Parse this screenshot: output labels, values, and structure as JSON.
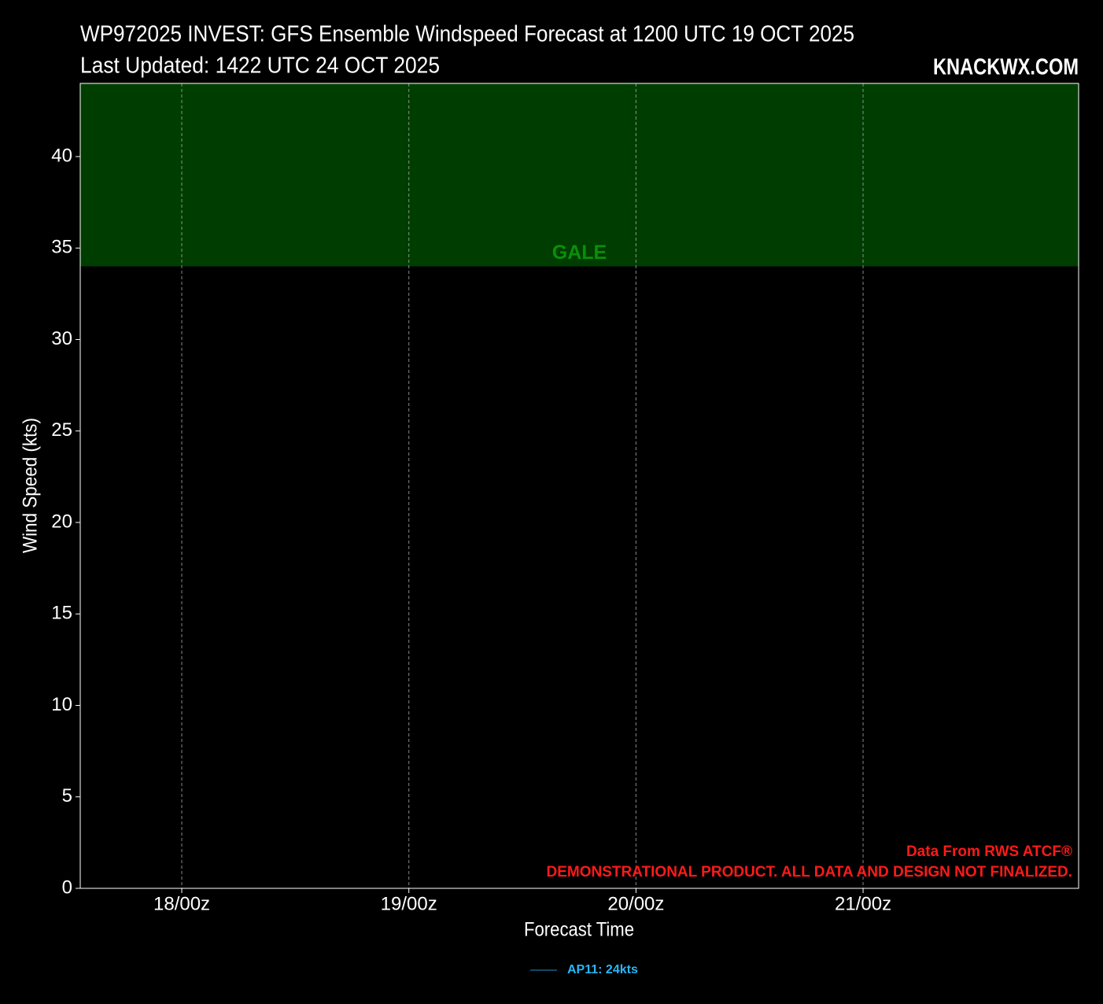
{
  "chart_data": {
    "type": "line",
    "title": "WP972025 INVEST: GFS Ensemble Windspeed Forecast at 1200 UTC 19 OCT 2025",
    "subtitle": "Last Updated: 1422 UTC 24 OCT 2025",
    "brand": "KNACKWX.COM",
    "xlabel": "Forecast Time",
    "ylabel": "Wind Speed (kts)",
    "xlim": [
      17.553,
      21.949
    ],
    "xticks": [
      {
        "value": 18,
        "label": "18/00z"
      },
      {
        "value": 19,
        "label": "19/00z"
      },
      {
        "value": 20,
        "label": "20/00z"
      },
      {
        "value": 21,
        "label": "21/00z"
      }
    ],
    "ylim": [
      0,
      44
    ],
    "yticks": [
      0,
      5,
      10,
      15,
      20,
      25,
      30,
      35,
      40
    ],
    "grid": true,
    "bands": [
      {
        "label": "GALE",
        "from": 34,
        "to": 44,
        "color": "#003d00",
        "label_color": "#0a8f0a"
      }
    ],
    "series": [
      {
        "name": "AP11: 24kts",
        "color": "#29b6f6",
        "x": [],
        "values": []
      }
    ],
    "annotations": [
      "Data From RWS ATCF®",
      "DEMONSTRATIONAL PRODUCT. ALL DATA AND DESIGN NOT FINALIZED."
    ],
    "annotation_color": "#ff1a1a"
  }
}
